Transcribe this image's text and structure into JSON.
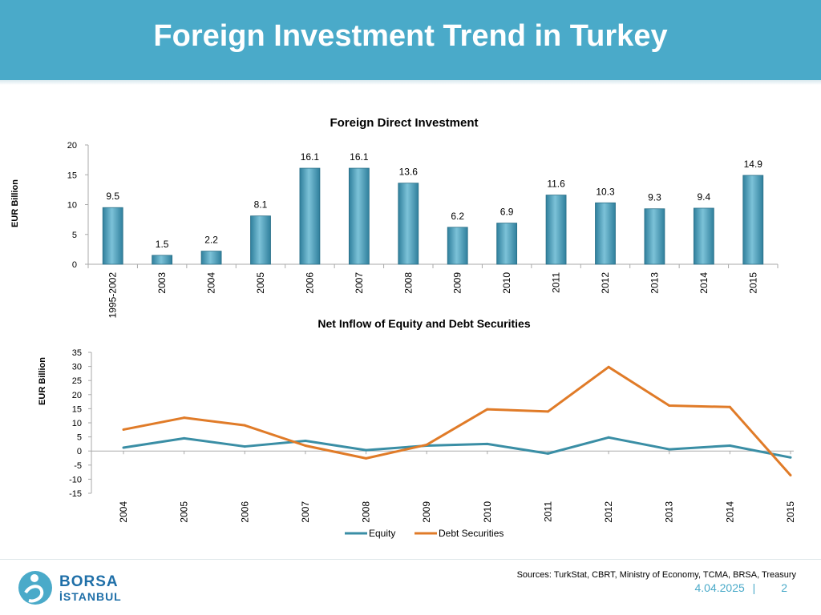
{
  "header": {
    "title": "Foreign Investment Trend in Turkey"
  },
  "chart_data": [
    {
      "type": "bar",
      "title": "Foreign Direct Investment",
      "ylabel": "EUR Billion",
      "ylim": [
        0,
        20
      ],
      "yticks": [
        0,
        5,
        10,
        15,
        20
      ],
      "categories": [
        "1995-2002",
        "2003",
        "2004",
        "2005",
        "2006",
        "2007",
        "2008",
        "2009",
        "2010",
        "2011",
        "2012",
        "2013",
        "2014",
        "2015"
      ],
      "values": [
        9.5,
        1.5,
        2.2,
        8.1,
        16.1,
        16.1,
        13.6,
        6.2,
        6.9,
        11.6,
        10.3,
        9.3,
        9.4,
        14.9
      ],
      "color": "#4a9bb8"
    },
    {
      "type": "line",
      "title": "Net Inflow of Equity and Debt Securities",
      "ylabel": "EUR Billion",
      "ylim": [
        -15,
        35
      ],
      "yticks": [
        -15,
        -10,
        -5,
        0,
        5,
        10,
        15,
        20,
        25,
        30,
        35
      ],
      "x": [
        "2004",
        "2005",
        "2006",
        "2007",
        "2008",
        "2009",
        "2010",
        "2011",
        "2012",
        "2013",
        "2014",
        "2015"
      ],
      "series": [
        {
          "name": "Equity",
          "color": "#3a8ea5",
          "values": [
            1.2,
            4.5,
            1.6,
            3.6,
            0.3,
            1.9,
            2.5,
            -0.9,
            4.8,
            0.6,
            1.9,
            -2.3
          ]
        },
        {
          "name": "Debt Securities",
          "color": "#e07b28",
          "values": [
            7.6,
            11.8,
            9.1,
            1.9,
            -2.6,
            2.2,
            14.8,
            14.0,
            29.8,
            16.1,
            15.6,
            -8.6
          ]
        }
      ],
      "legend": "bottom"
    }
  ],
  "footer": {
    "sources": "Sources: TurkStat, CBRT, Ministry of Economy, TCMA, BRSA, Treasury",
    "date": "4.04.2025",
    "separator": "|",
    "page": "2",
    "logo_line1": "BORSA",
    "logo_line2": "İSTANBUL"
  }
}
